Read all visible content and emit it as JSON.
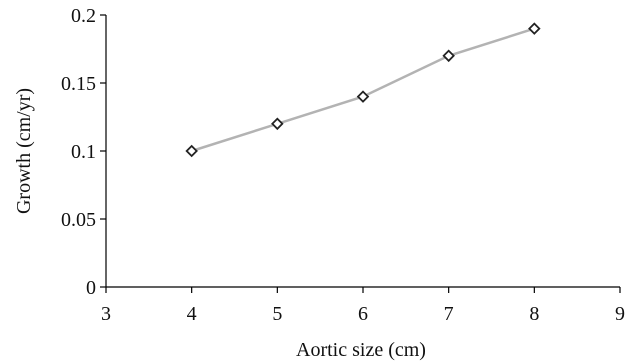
{
  "chart_data": {
    "type": "line",
    "title": "",
    "xlabel": "Aortic size (cm)",
    "ylabel": "Growth (cm/yr)",
    "xlim": [
      3,
      9
    ],
    "ylim": [
      0,
      0.2
    ],
    "xticks": [
      "3",
      "4",
      "5",
      "6",
      "7",
      "8",
      "9"
    ],
    "yticks": [
      "0",
      "0.05",
      "0.1",
      "0.15",
      "0.2"
    ],
    "grid": false,
    "legend": "none",
    "series": [
      {
        "x": [
          4,
          5,
          6,
          7,
          8
        ],
        "y": [
          0.1,
          0.12,
          0.14,
          0.17,
          0.19
        ],
        "line_color": "#b3b3b3",
        "marker": "diamond",
        "marker_color": "#222222"
      }
    ]
  }
}
